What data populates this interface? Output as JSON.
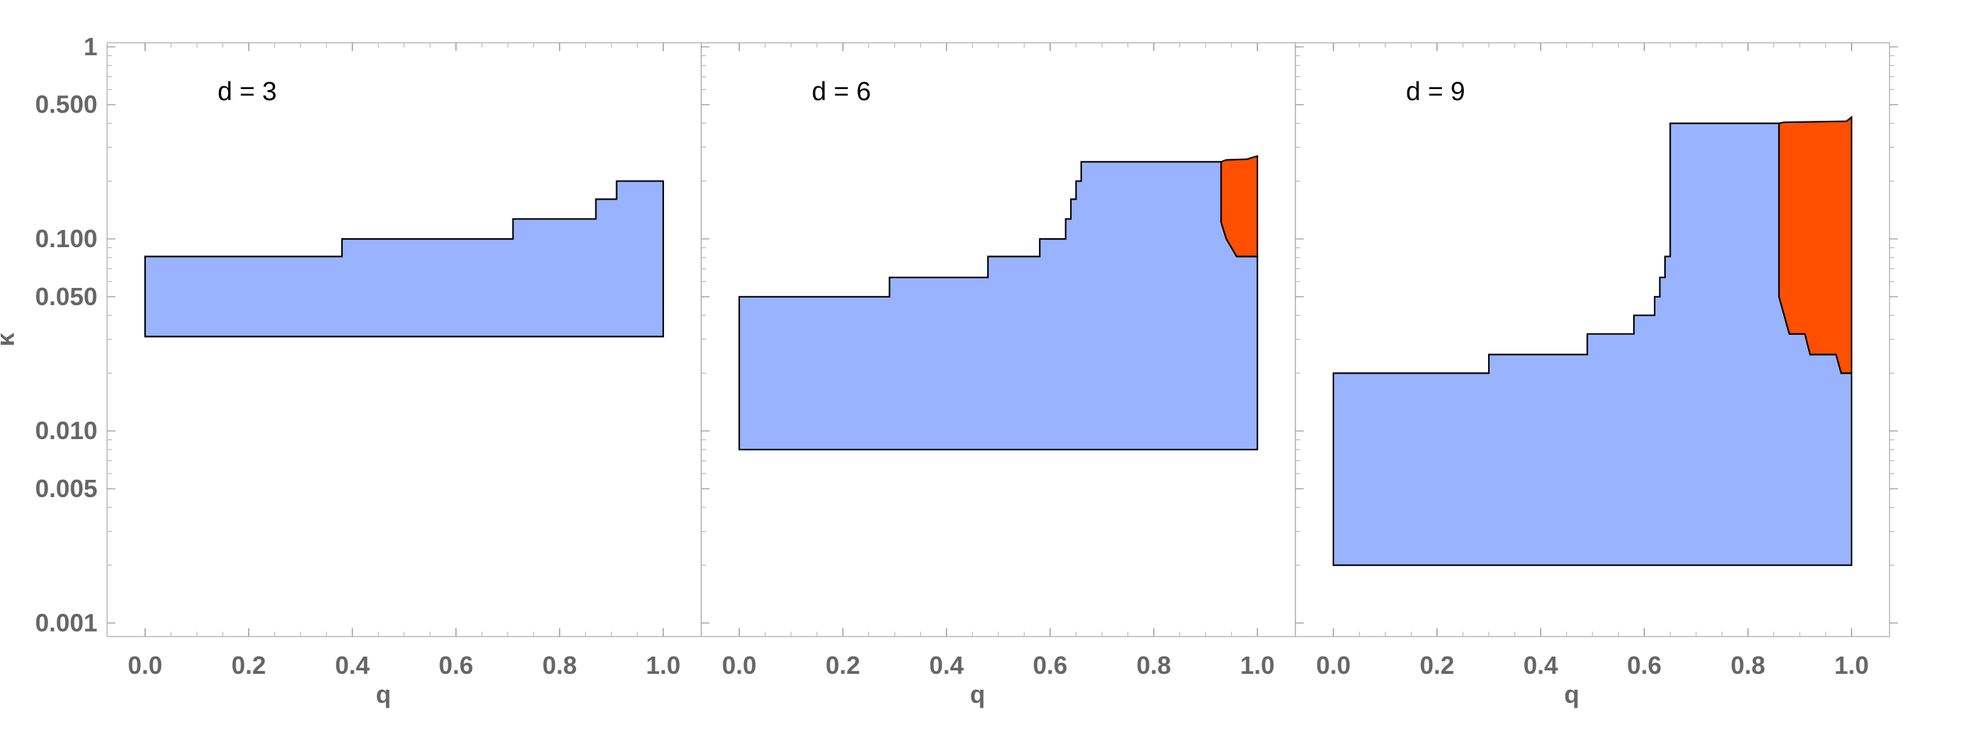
{
  "chart_data": {
    "type": "area",
    "ylabel": "κ",
    "xlabel": "q",
    "y_scale": "log",
    "ylim": [
      0.00085,
      1.05
    ],
    "xlim": [
      -0.07,
      1.07
    ],
    "grid": false,
    "y_ticks": [
      {
        "value": 1,
        "label": "1"
      },
      {
        "value": 0.5,
        "label": "0.500"
      },
      {
        "value": 0.1,
        "label": "0.100"
      },
      {
        "value": 0.05,
        "label": "0.050"
      },
      {
        "value": 0.01,
        "label": "0.010"
      },
      {
        "value": 0.005,
        "label": "0.005"
      },
      {
        "value": 0.001,
        "label": "0.001"
      }
    ],
    "x_ticks": [
      {
        "value": 0.0,
        "label": "0.0"
      },
      {
        "value": 0.2,
        "label": "0.2"
      },
      {
        "value": 0.4,
        "label": "0.4"
      },
      {
        "value": 0.6,
        "label": "0.6"
      },
      {
        "value": 0.8,
        "label": "0.8"
      },
      {
        "value": 1.0,
        "label": "1.0"
      }
    ],
    "colors": {
      "blue_region": "#99b3ff",
      "orange_region": "#ff4f00",
      "outline": "#000000",
      "frame": "#bbbbbb",
      "tick_text": "#666666"
    },
    "panels": [
      {
        "label": "d = 3",
        "regions": [
          {
            "color": "blue",
            "points": [
              [
                0,
                0.031
              ],
              [
                0,
                0.081
              ],
              [
                0.38,
                0.081
              ],
              [
                0.38,
                0.1
              ],
              [
                0.71,
                0.1
              ],
              [
                0.71,
                0.127
              ],
              [
                0.87,
                0.127
              ],
              [
                0.87,
                0.161
              ],
              [
                0.91,
                0.161
              ],
              [
                0.91,
                0.2
              ],
              [
                1,
                0.2
              ],
              [
                1,
                0.031
              ]
            ]
          }
        ]
      },
      {
        "label": "d = 6",
        "regions": [
          {
            "color": "blue",
            "points": [
              [
                0,
                0.008
              ],
              [
                0,
                0.05
              ],
              [
                0.29,
                0.05
              ],
              [
                0.29,
                0.063
              ],
              [
                0.48,
                0.063
              ],
              [
                0.48,
                0.081
              ],
              [
                0.58,
                0.081
              ],
              [
                0.58,
                0.1
              ],
              [
                0.63,
                0.1
              ],
              [
                0.63,
                0.127
              ],
              [
                0.64,
                0.127
              ],
              [
                0.64,
                0.161
              ],
              [
                0.65,
                0.161
              ],
              [
                0.65,
                0.2
              ],
              [
                0.66,
                0.2
              ],
              [
                0.66,
                0.252
              ],
              [
                0.93,
                0.252
              ],
              [
                0.93,
                0.122
              ],
              [
                0.94,
                0.1
              ],
              [
                0.96,
                0.081
              ],
              [
                1,
                0.081
              ],
              [
                1,
                0.008
              ]
            ]
          },
          {
            "color": "orange",
            "points": [
              [
                0.93,
                0.252
              ],
              [
                0.94,
                0.258
              ],
              [
                0.98,
                0.26
              ],
              [
                0.995,
                0.268
              ],
              [
                1,
                0.27
              ],
              [
                1,
                0.081
              ],
              [
                0.96,
                0.081
              ],
              [
                0.94,
                0.1
              ],
              [
                0.93,
                0.122
              ]
            ]
          }
        ]
      },
      {
        "label": "d = 9",
        "regions": [
          {
            "color": "blue",
            "points": [
              [
                0,
                0.002
              ],
              [
                0,
                0.02
              ],
              [
                0.3,
                0.02
              ],
              [
                0.3,
                0.025
              ],
              [
                0.49,
                0.025
              ],
              [
                0.49,
                0.032
              ],
              [
                0.58,
                0.032
              ],
              [
                0.58,
                0.04
              ],
              [
                0.62,
                0.04
              ],
              [
                0.62,
                0.05
              ],
              [
                0.63,
                0.05
              ],
              [
                0.63,
                0.063
              ],
              [
                0.64,
                0.063
              ],
              [
                0.64,
                0.081
              ],
              [
                0.65,
                0.081
              ],
              [
                0.65,
                0.4
              ],
              [
                0.86,
                0.4
              ],
              [
                0.86,
                0.05
              ],
              [
                0.88,
                0.032
              ],
              [
                0.91,
                0.032
              ],
              [
                0.92,
                0.025
              ],
              [
                0.97,
                0.025
              ],
              [
                0.98,
                0.02
              ],
              [
                1,
                0.02
              ],
              [
                1,
                0.002
              ]
            ]
          },
          {
            "color": "orange",
            "points": [
              [
                0.86,
                0.4
              ],
              [
                0.87,
                0.405
              ],
              [
                0.99,
                0.41
              ],
              [
                1,
                0.43
              ],
              [
                1,
                0.02
              ],
              [
                0.98,
                0.02
              ],
              [
                0.97,
                0.025
              ],
              [
                0.92,
                0.025
              ],
              [
                0.91,
                0.032
              ],
              [
                0.88,
                0.032
              ],
              [
                0.86,
                0.05
              ]
            ]
          }
        ]
      }
    ]
  }
}
